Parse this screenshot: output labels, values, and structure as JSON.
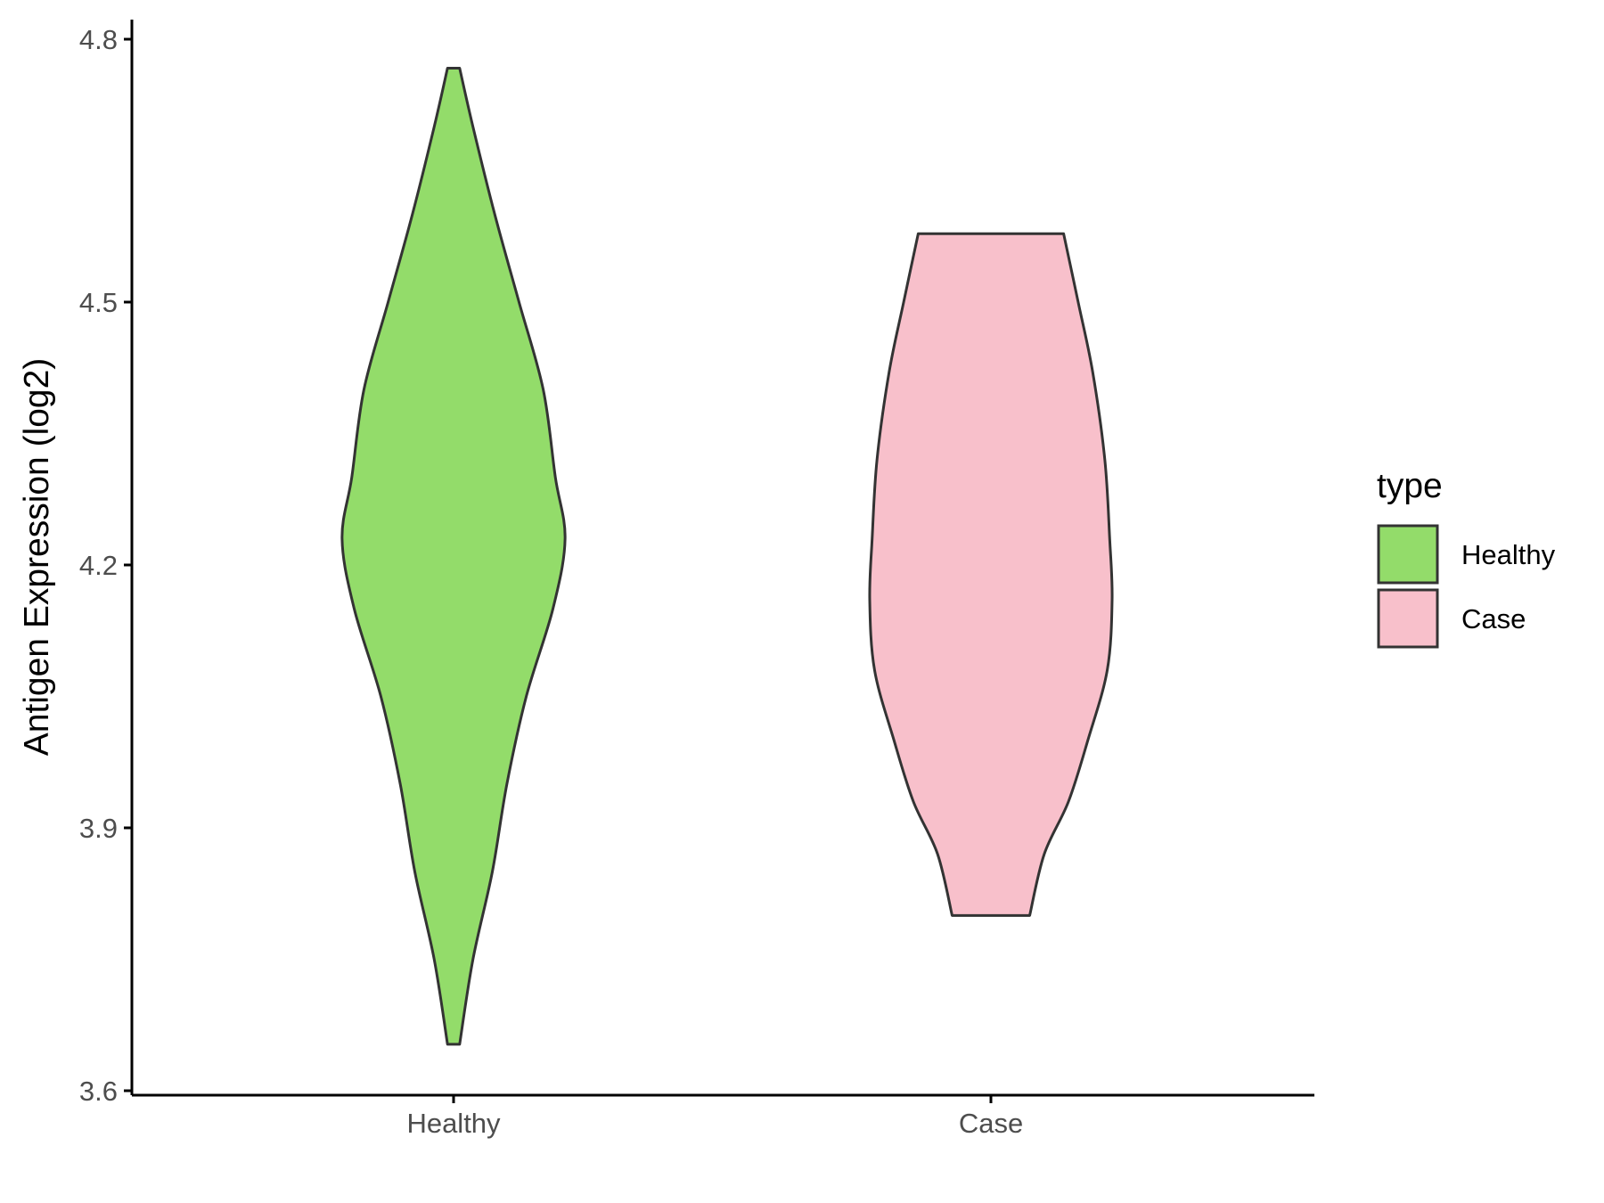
{
  "chart_data": {
    "type": "violin",
    "title": "",
    "xlabel": "",
    "ylabel": "Antigen Expression (log2)",
    "ylim": [
      3.6,
      4.8
    ],
    "yticks": [
      "3.6",
      "3.9",
      "4.2",
      "4.5",
      "4.8"
    ],
    "categories": [
      "Healthy",
      "Case"
    ],
    "grid": false,
    "legend": {
      "title": "type",
      "placement": "right",
      "entries": [
        "Healthy",
        "Case"
      ]
    },
    "series": [
      {
        "name": "Healthy",
        "color": "#93dc6a",
        "min": 3.653,
        "max": 4.767,
        "density_profile": [
          [
            4.767,
            0.025
          ],
          [
            4.7,
            0.08
          ],
          [
            4.6,
            0.17
          ],
          [
            4.5,
            0.27
          ],
          [
            4.4,
            0.37
          ],
          [
            4.3,
            0.42
          ],
          [
            4.23,
            0.46
          ],
          [
            4.15,
            0.41
          ],
          [
            4.05,
            0.3
          ],
          [
            3.95,
            0.22
          ],
          [
            3.85,
            0.16
          ],
          [
            3.75,
            0.08
          ],
          [
            3.653,
            0.025
          ]
        ]
      },
      {
        "name": "Case",
        "color": "#f8c0cb",
        "min": 3.8,
        "max": 4.578,
        "density_profile": [
          [
            4.578,
            0.3
          ],
          [
            4.5,
            0.36
          ],
          [
            4.42,
            0.42
          ],
          [
            4.32,
            0.47
          ],
          [
            4.23,
            0.49
          ],
          [
            4.16,
            0.5
          ],
          [
            4.08,
            0.48
          ],
          [
            4.0,
            0.4
          ],
          [
            3.93,
            0.32
          ],
          [
            3.87,
            0.22
          ],
          [
            3.8,
            0.16
          ]
        ]
      }
    ]
  },
  "colors": {
    "axis": "#000000",
    "outline": "#333333",
    "tick_text": "#4d4d4d",
    "background": "#ffffff"
  }
}
